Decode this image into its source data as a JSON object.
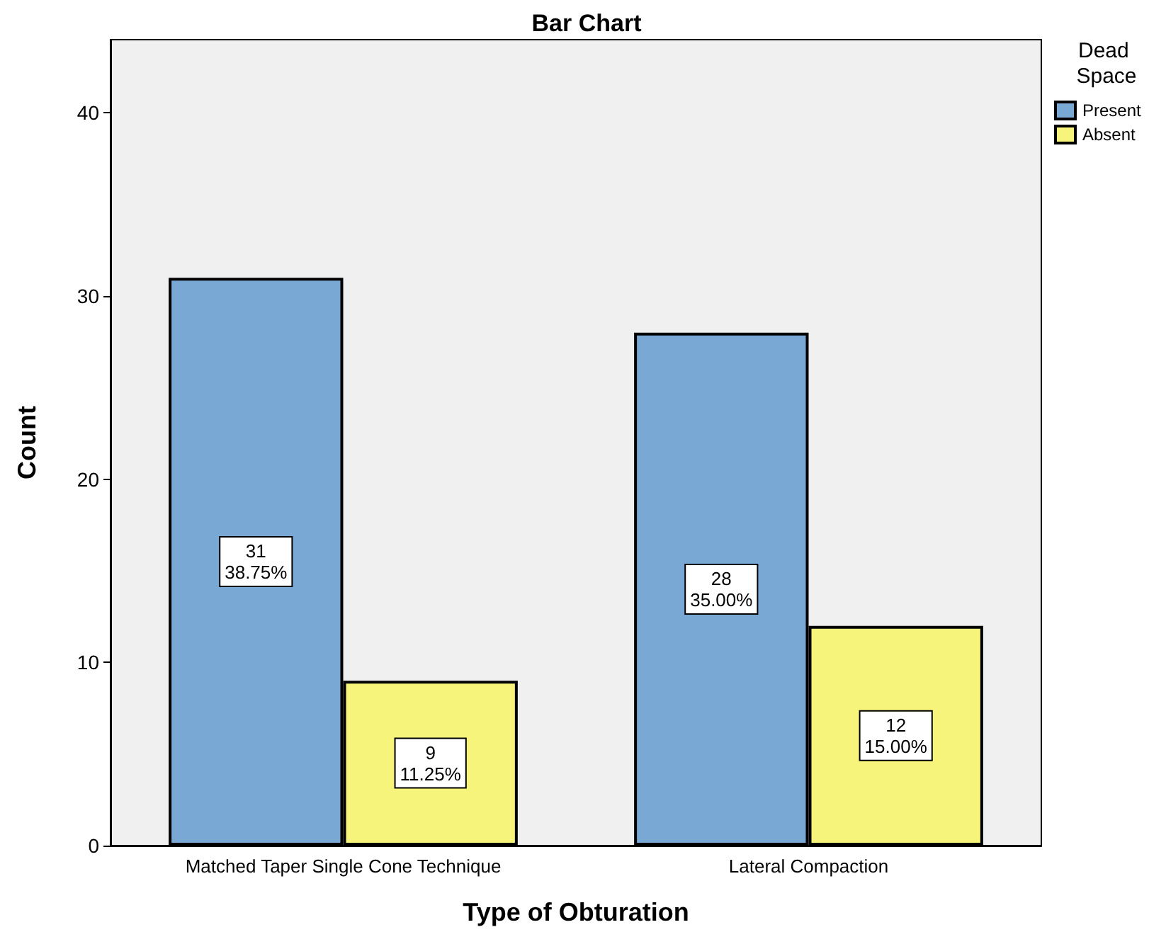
{
  "chart_data": {
    "type": "bar",
    "title": "Bar Chart",
    "xlabel": "Type of Obturation",
    "ylabel": "Count",
    "legend_title": "Dead Space",
    "categories": [
      "Matched Taper Single Cone Technique",
      "Lateral Compaction"
    ],
    "series": [
      {
        "name": "Present",
        "color": "#79a8d5",
        "values": [
          31,
          28
        ],
        "value_labels": [
          "31\n38.75%",
          "28\n35.00%"
        ]
      },
      {
        "name": "Absent",
        "color": "#f7f47b",
        "values": [
          9,
          12
        ],
        "value_labels": [
          "9\n11.25%",
          "12\n15.00%"
        ]
      }
    ],
    "ylim": [
      0,
      44
    ],
    "yticks": [
      0,
      10,
      20,
      30,
      40
    ],
    "grid": false,
    "legend": "top right"
  }
}
